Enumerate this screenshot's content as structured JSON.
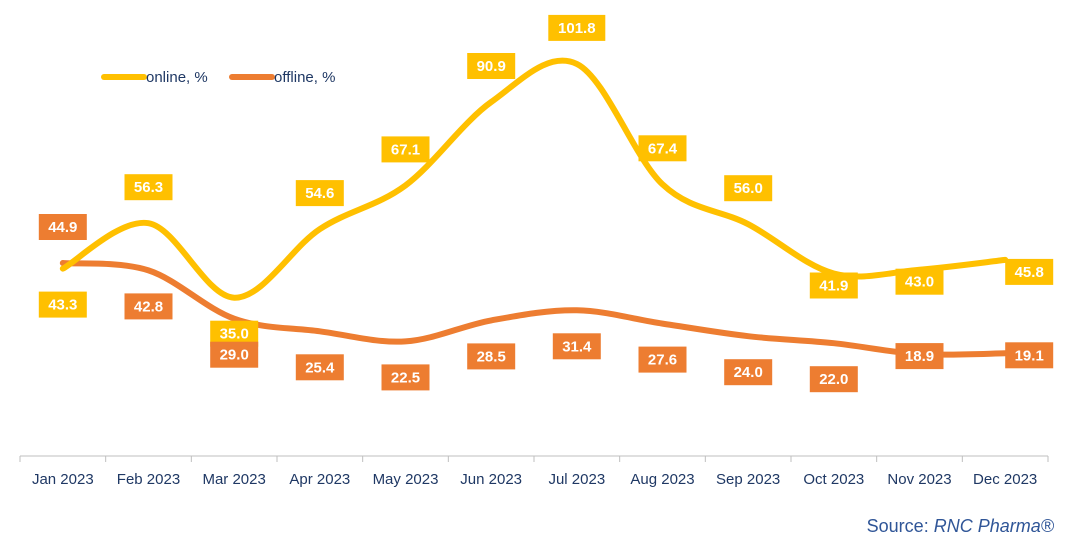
{
  "colors": {
    "online": "#FFC000",
    "offline": "#ED7D31",
    "axis": "#bfbfbf",
    "text": "#1f3864",
    "source": "#2f5597"
  },
  "source": {
    "prefix": "Source: ",
    "brand": "RNC Pharma®"
  },
  "chart_data": {
    "type": "line",
    "smooth": true,
    "categories": [
      "Jan 2023",
      "Feb 2023",
      "Mar 2023",
      "Apr 2023",
      "May 2023",
      "Jun 2023",
      "Jul 2023",
      "Aug 2023",
      "Sep 2023",
      "Oct 2023",
      "Nov 2023",
      "Dec 2023"
    ],
    "series": [
      {
        "name": "online, %",
        "color": "#FFC000",
        "values": [
          43.3,
          56.3,
          35.0,
          54.6,
          67.1,
          90.9,
          101.8,
          67.4,
          56.0,
          41.9,
          43.0,
          45.8
        ],
        "labels": [
          "43.3",
          "56.3",
          "35.0",
          "54.6",
          "67.1",
          "90.9",
          "101.8",
          "67.4",
          "56.0",
          "41.9",
          "43.0",
          "45.8"
        ]
      },
      {
        "name": "offline, %",
        "color": "#ED7D31",
        "values": [
          44.9,
          42.8,
          29.0,
          25.4,
          22.5,
          28.5,
          31.4,
          27.6,
          24.0,
          22.0,
          18.9,
          19.1
        ],
        "labels": [
          "44.9",
          "42.8",
          "29.0",
          "25.4",
          "22.5",
          "28.5",
          "31.4",
          "27.6",
          "24.0",
          "22.0",
          "18.9",
          "19.1"
        ]
      }
    ],
    "ylim": [
      0,
      110
    ],
    "xlabel": "",
    "ylabel": "",
    "grid": false,
    "legend": "top-left"
  }
}
